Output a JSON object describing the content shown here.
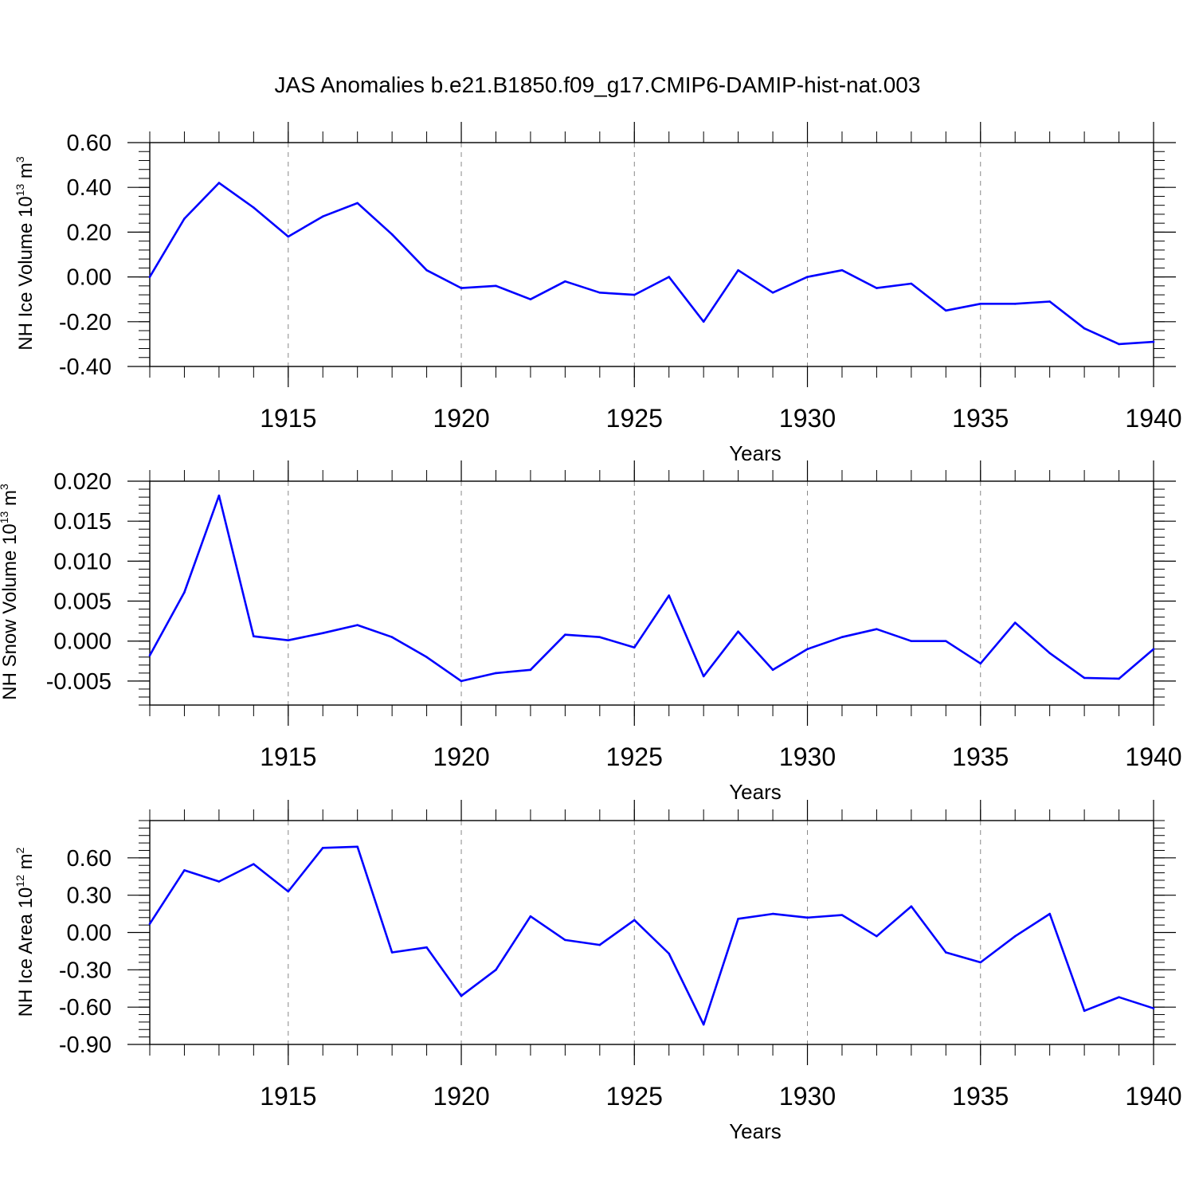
{
  "title": "JAS Anomalies b.e21.B1850.f09_g17.CMIP6-DAMIP-hist-nat.003",
  "colors": {
    "line": "#0000ff",
    "axis": "#000000",
    "grid": "#888888"
  },
  "chart_data": [
    {
      "type": "line",
      "ylabel": {
        "base": "NH Ice Volume 10",
        "exp": "13",
        "unit": " m",
        "unit_exp": "3"
      },
      "xlabel": "Years",
      "xlim": [
        1911,
        1940
      ],
      "ylim": [
        -0.4,
        0.6
      ],
      "yticks": [
        0.6,
        0.4,
        0.2,
        0.0,
        -0.2,
        -0.4
      ],
      "ytick_labels": [
        "0.60",
        "0.40",
        "0.20",
        "0.00",
        "-0.20",
        "-0.40"
      ],
      "xticks": [
        1915,
        1920,
        1925,
        1930,
        1935,
        1940
      ],
      "xtick_labels": [
        "1915",
        "1920",
        "1925",
        "1930",
        "1935",
        "1940"
      ],
      "grid": "vertical dashed at major x ticks",
      "series": [
        {
          "x": [
            1911,
            1912,
            1913,
            1914,
            1915,
            1916,
            1917,
            1918,
            1919,
            1920,
            1921,
            1922,
            1923,
            1924,
            1925,
            1926,
            1927,
            1928,
            1929,
            1930,
            1931,
            1932,
            1933,
            1934,
            1935,
            1936,
            1937,
            1938,
            1939,
            1940
          ],
          "values": [
            0.0,
            0.26,
            0.42,
            0.31,
            0.18,
            0.27,
            0.33,
            0.19,
            0.03,
            -0.05,
            -0.04,
            -0.1,
            -0.02,
            -0.07,
            -0.08,
            0.0,
            -0.2,
            0.03,
            -0.07,
            0.0,
            0.03,
            -0.05,
            -0.03,
            -0.15,
            -0.12,
            -0.12,
            -0.11,
            -0.23,
            -0.3,
            -0.29
          ]
        }
      ]
    },
    {
      "type": "line",
      "ylabel": {
        "base": "NH Snow Volume 10",
        "exp": "13",
        "unit": " m",
        "unit_exp": "3"
      },
      "xlabel": "Years",
      "xlim": [
        1911,
        1940
      ],
      "ylim": [
        -0.008,
        0.02
      ],
      "yticks": [
        0.02,
        0.015,
        0.01,
        0.005,
        0.0,
        -0.005
      ],
      "ytick_labels": [
        "0.020",
        "0.015",
        "0.010",
        "0.005",
        "0.000",
        "-0.005"
      ],
      "xticks": [
        1915,
        1920,
        1925,
        1930,
        1935,
        1940
      ],
      "xtick_labels": [
        "1915",
        "1920",
        "1925",
        "1930",
        "1935",
        "1940"
      ],
      "grid": "vertical dashed at major x ticks",
      "series": [
        {
          "x": [
            1911,
            1912,
            1913,
            1914,
            1915,
            1916,
            1917,
            1918,
            1919,
            1920,
            1921,
            1922,
            1923,
            1924,
            1925,
            1926,
            1927,
            1928,
            1929,
            1930,
            1931,
            1932,
            1933,
            1934,
            1935,
            1936,
            1937,
            1938,
            1939,
            1940
          ],
          "values": [
            -0.0018,
            0.0061,
            0.0182,
            0.0006,
            0.0001,
            0.001,
            0.002,
            0.0005,
            -0.002,
            -0.005,
            -0.004,
            -0.0036,
            0.0008,
            0.0005,
            -0.0008,
            0.0057,
            -0.0044,
            0.0012,
            -0.0036,
            -0.001,
            0.0005,
            0.0015,
            0.0,
            0.0,
            -0.0028,
            0.0023,
            -0.0015,
            -0.0046,
            -0.0047,
            -0.001
          ]
        }
      ]
    },
    {
      "type": "line",
      "ylabel": {
        "base": "NH Ice Area 10",
        "exp": "12",
        "unit": " m",
        "unit_exp": "2"
      },
      "xlabel": "Years",
      "xlim": [
        1911,
        1940
      ],
      "ylim": [
        -0.9,
        0.9
      ],
      "yticks": [
        0.6,
        0.3,
        0.0,
        -0.3,
        -0.6,
        -0.9
      ],
      "ytick_labels": [
        "0.60",
        "0.30",
        "0.00",
        "-0.30",
        "-0.60",
        "-0.90"
      ],
      "xticks": [
        1915,
        1920,
        1925,
        1930,
        1935,
        1940
      ],
      "xtick_labels": [
        "1915",
        "1920",
        "1925",
        "1930",
        "1935",
        "1940"
      ],
      "grid": "vertical dashed at major x ticks",
      "series": [
        {
          "x": [
            1911,
            1912,
            1913,
            1914,
            1915,
            1916,
            1917,
            1918,
            1919,
            1920,
            1921,
            1922,
            1923,
            1924,
            1925,
            1926,
            1927,
            1928,
            1929,
            1930,
            1931,
            1932,
            1933,
            1934,
            1935,
            1936,
            1937,
            1938,
            1939,
            1940
          ],
          "values": [
            0.07,
            0.5,
            0.41,
            0.55,
            0.33,
            0.68,
            0.69,
            -0.16,
            -0.12,
            -0.51,
            -0.3,
            0.13,
            -0.06,
            -0.1,
            0.1,
            -0.17,
            -0.74,
            0.11,
            0.15,
            0.12,
            0.14,
            -0.03,
            0.21,
            -0.16,
            -0.24,
            -0.03,
            0.15,
            -0.63,
            -0.52,
            -0.61
          ]
        }
      ]
    }
  ]
}
